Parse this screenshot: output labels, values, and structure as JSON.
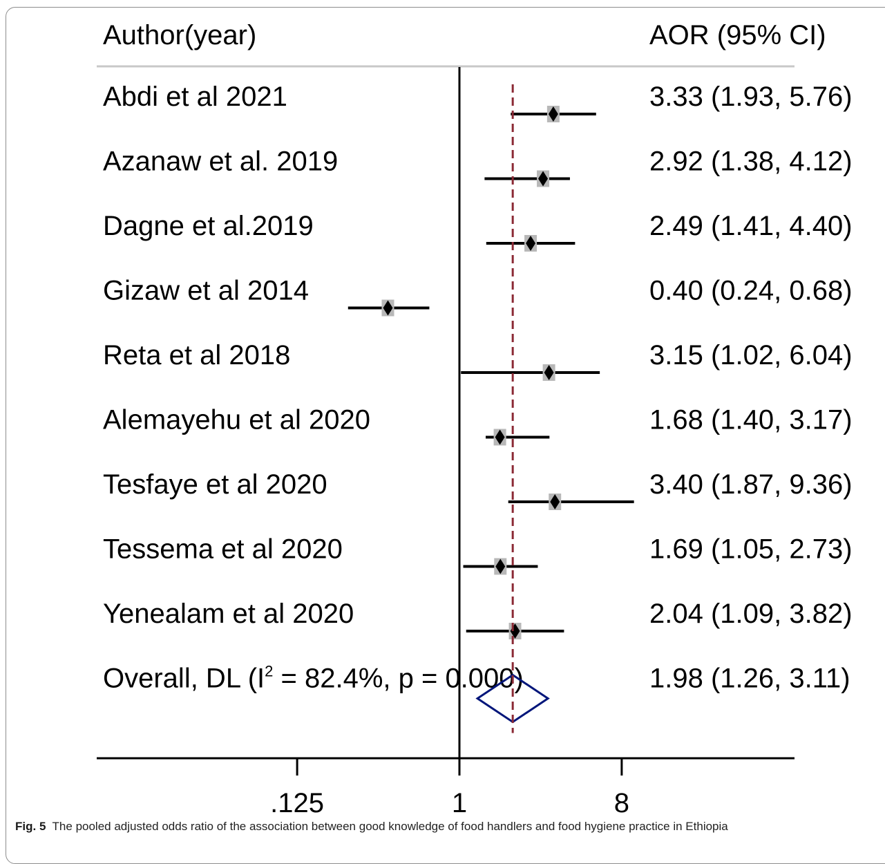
{
  "chart_data": {
    "type": "forest",
    "header_left": "Author(year)",
    "header_right": "AOR (95% CI)",
    "x_scale": "log2",
    "xlim": [
      0.0625,
      16
    ],
    "ticks": [
      {
        "value": 0.125,
        "label": ".125"
      },
      {
        "value": 1,
        "label": "1"
      },
      {
        "value": 8,
        "label": "8"
      }
    ],
    "reference_line": 1,
    "pooled_line": 1.98,
    "studies": [
      {
        "label": "Abdi  et al 2021",
        "or": 3.33,
        "lo": 1.93,
        "hi": 5.76,
        "ci_text": "3.33 (1.93, 5.76)"
      },
      {
        "label": "Azanaw et al. 2019",
        "or": 2.92,
        "lo": 1.38,
        "hi": 4.12,
        "ci_text": "2.92 (1.38, 4.12)"
      },
      {
        "label": "Dagne et al.2019",
        "or": 2.49,
        "lo": 1.41,
        "hi": 4.4,
        "ci_text": "2.49 (1.41, 4.40)"
      },
      {
        "label": "Gizaw et al 2014",
        "or": 0.4,
        "lo": 0.24,
        "hi": 0.68,
        "ci_text": "0.40 (0.24, 0.68)"
      },
      {
        "label": "Reta et al 2018",
        "or": 3.15,
        "lo": 1.02,
        "hi": 6.04,
        "ci_text": "3.15 (1.02, 6.04)"
      },
      {
        "label": "Alemayehu et al 2020",
        "or": 1.68,
        "lo": 1.4,
        "hi": 3.17,
        "ci_text": "1.68 (1.40, 3.17)"
      },
      {
        "label": "Tesfaye et al 2020",
        "or": 3.4,
        "lo": 1.87,
        "hi": 9.36,
        "ci_text": "3.40 (1.87, 9.36)"
      },
      {
        "label": "Tessema et al 2020",
        "or": 1.69,
        "lo": 1.05,
        "hi": 2.73,
        "ci_text": "1.69 (1.05, 2.73)"
      },
      {
        "label": "Yenealam et al 2020",
        "or": 2.04,
        "lo": 1.09,
        "hi": 3.82,
        "ci_text": "2.04 (1.09, 3.82)"
      }
    ],
    "overall": {
      "label_prefix": "Overall, DL (I",
      "label_sup": "2",
      "label_suffix": " = 82.4%, p = 0.000)",
      "or": 1.98,
      "lo": 1.26,
      "hi": 3.11,
      "ci_text": "1.98 (1.26, 3.11)"
    },
    "colors": {
      "pooled_line": "#8b2a35",
      "diamond": "#00157a",
      "box": "#b8b8b8",
      "marker": "#000000"
    }
  },
  "caption": {
    "number": "Fig. 5",
    "text": "The pooled adjusted odds ratio of the association between good knowledge of food handlers and food hygiene practice in Ethiopia"
  }
}
